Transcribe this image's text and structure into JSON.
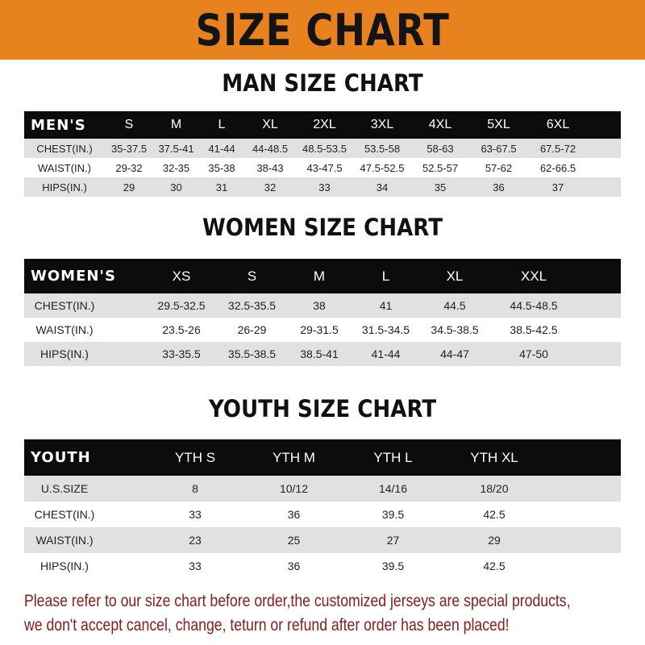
{
  "colors": {
    "accent": "#E8821E",
    "header_row": "#0C0C0C",
    "stripe": "#E1E1E1",
    "note": "#8B1A1A"
  },
  "banner_title": "SIZE CHART",
  "men": {
    "title": "MAN SIZE CHART",
    "header": [
      "MEN'S",
      "S",
      "M",
      "L",
      "XL",
      "2XL",
      "3XL",
      "4XL",
      "5XL",
      "6XL"
    ],
    "rows": [
      [
        "CHEST(IN.)",
        "35-37.5",
        "37.5-41",
        "41-44",
        "44-48.5",
        "48.5-53.5",
        "53.5-58",
        "58-63",
        "63-67.5",
        "67.5-72"
      ],
      [
        "WAIST(IN.)",
        "29-32",
        "32-35",
        "35-38",
        "38-43",
        "43-47.5",
        "47.5-52.5",
        "52.5-57",
        "57-62",
        "62-66.5"
      ],
      [
        "HIPS(IN.)",
        "29",
        "30",
        "31",
        "32",
        "33",
        "34",
        "35",
        "36",
        "37"
      ]
    ]
  },
  "women": {
    "title": "WOMEN SIZE CHART",
    "header": [
      "WOMEN'S",
      "XS",
      "S",
      "M",
      "L",
      "XL",
      "XXL"
    ],
    "rows": [
      [
        "CHEST(IN.)",
        "29.5-32.5",
        "32.5-35.5",
        "38",
        "41",
        "44.5",
        "44.5-48.5"
      ],
      [
        "WAIST(IN.)",
        "23.5-26",
        "26-29",
        "29-31.5",
        "31.5-34.5",
        "34.5-38.5",
        "38.5-42.5"
      ],
      [
        "HIPS(IN.)",
        "33-35.5",
        "35.5-38.5",
        "38.5-41",
        "41-44",
        "44-47",
        "47-50"
      ]
    ]
  },
  "youth": {
    "title": "YOUTH SIZE CHART",
    "header": [
      "YOUTH",
      "YTH S",
      "YTH M",
      "YTH L",
      "YTH XL"
    ],
    "rows": [
      [
        "U.S.SIZE",
        "8",
        "10/12",
        "14/16",
        "18/20"
      ],
      [
        "CHEST(IN.)",
        "33",
        "36",
        "39.5",
        "42.5"
      ],
      [
        "WAIST(IN.)",
        "23",
        "25",
        "27",
        "29"
      ],
      [
        "HIPS(IN.)",
        "33",
        "36",
        "39.5",
        "42.5"
      ]
    ]
  },
  "note": {
    "line1": "Please refer to our size chart before order,the customized jerseys are special products,",
    "line2": "we don't accept cancel, change, teturn or refund after order has been placed!"
  }
}
